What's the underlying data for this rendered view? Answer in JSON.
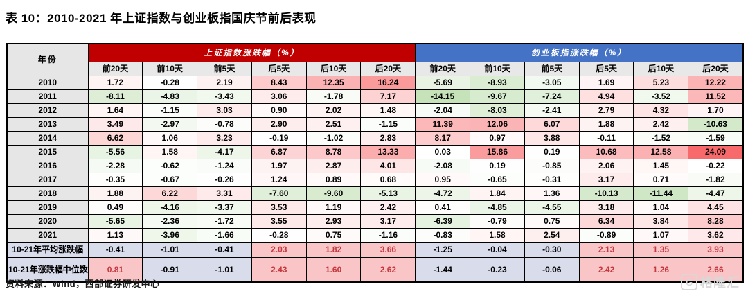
{
  "title": "表 10：2010-2021 年上证指数与创业板指国庆节前后表现",
  "source": "资料来源：Wind，西部证券研发中心",
  "watermark": {
    "icon_letter": "G",
    "text": "格隆汇"
  },
  "style": {
    "group1_bg": "#C00000",
    "group2_bg": "#4472C4",
    "group_header_text": "#FFFFFF",
    "subheader_bg": "#E8E8E8",
    "year_bg": "#E6E6E6",
    "pos_max_color": "#F8696B",
    "neg_max_color": "#84C169",
    "pos_scale_max": 24.09,
    "neg_scale_max": 30,
    "summary_neg_bg": "#D8DCEB",
    "summary_pos_bg": "#F9C5C7",
    "summary_pos_text": "#C5383E",
    "border_color": "#000000",
    "watermark_color": "#D8D8D8"
  },
  "chart_data": {
    "type": "table",
    "title": "表 10：2010-2021 年上证指数与创业板指国庆节前后表现",
    "row_header": "年份",
    "groups": [
      "上证指数涨跌幅（%）",
      "创业板指涨跌幅（%）"
    ],
    "sub_columns": [
      "前20天",
      "前10天",
      "前5天",
      "后5天",
      "后10天",
      "后20天"
    ],
    "rows": [
      {
        "label": "2010",
        "sh": [
          1.72,
          -0.28,
          2.19,
          8.43,
          12.35,
          16.24
        ],
        "cyb": [
          -5.69,
          -8.93,
          -3.05,
          1.69,
          5.23,
          12.22
        ]
      },
      {
        "label": "2011",
        "sh": [
          -8.11,
          -4.83,
          -3.43,
          3.06,
          -1.78,
          7.17
        ],
        "cyb": [
          -14.15,
          -9.67,
          -7.24,
          4.94,
          -3.52,
          11.52
        ]
      },
      {
        "label": "2012",
        "sh": [
          1.64,
          -1.15,
          3.03,
          0.9,
          2.02,
          1.48
        ],
        "cyb": [
          -2.04,
          -8.03,
          -2.41,
          2.79,
          4.32,
          1.7
        ]
      },
      {
        "label": "2013",
        "sh": [
          3.49,
          -2.97,
          -0.78,
          2.9,
          2.51,
          -1.15
        ],
        "cyb": [
          11.39,
          12.06,
          6.07,
          1.88,
          2.42,
          -10.63
        ]
      },
      {
        "label": "2014",
        "sh": [
          6.62,
          1.06,
          3.23,
          -0.19,
          -1.02,
          2.83
        ],
        "cyb": [
          8.17,
          0.97,
          3.88,
          -0.11,
          -1.52,
          -1.59
        ]
      },
      {
        "label": "2015",
        "sh": [
          -5.56,
          1.58,
          -4.17,
          6.87,
          8.78,
          13.33
        ],
        "cyb": [
          0.03,
          15.86,
          0.19,
          10.68,
          12.58,
          24.09
        ]
      },
      {
        "label": "2016",
        "sh": [
          -2.28,
          -0.62,
          -1.24,
          1.97,
          2.87,
          4.01
        ],
        "cyb": [
          -2.08,
          0.19,
          -0.85,
          2.06,
          1.45,
          -0.22
        ]
      },
      {
        "label": "2017",
        "sh": [
          -0.35,
          -0.67,
          -0.26,
          1.24,
          0.89,
          0.68
        ],
        "cyb": [
          0.95,
          -0.65,
          -0.31,
          3.17,
          0.71,
          -1.82
        ]
      },
      {
        "label": "2018",
        "sh": [
          1.88,
          6.22,
          3.31,
          -7.6,
          -9.6,
          -5.13
        ],
        "cyb": [
          -4.72,
          1.84,
          1.36,
          -10.13,
          -11.44,
          -4.47
        ]
      },
      {
        "label": "2019",
        "sh": [
          0.49,
          -4.16,
          -3.37,
          3.53,
          1.19,
          2.42
        ],
        "cyb": [
          0.41,
          -4.85,
          -4.55,
          3.18,
          1.04,
          4.45
        ]
      },
      {
        "label": "2020",
        "sh": [
          -5.65,
          -2.36,
          -1.72,
          3.55,
          2.93,
          3.17
        ],
        "cyb": [
          -6.39,
          -0.79,
          0.75,
          6.34,
          3.84,
          8.28
        ]
      },
      {
        "label": "2021",
        "sh": [
          1.13,
          -3.96,
          -1.66,
          -0.28,
          0.75,
          -1.16
        ],
        "cyb": [
          -0.83,
          1.58,
          2.54,
          -0.89,
          1.07,
          3.62
        ]
      }
    ],
    "summary_rows": [
      {
        "label": "10-21年平均涨跌幅",
        "sh": [
          -0.41,
          -1.01,
          -0.41,
          2.03,
          1.82,
          3.66
        ],
        "cyb": [
          -1.25,
          -0.04,
          -0.3,
          2.13,
          1.35,
          3.93
        ]
      },
      {
        "label": "10-21年涨跌幅中位数",
        "sh": [
          0.81,
          -0.91,
          -1.01,
          2.43,
          1.6,
          2.62
        ],
        "cyb": [
          -1.44,
          -0.23,
          -0.06,
          2.42,
          1.26,
          2.66
        ]
      }
    ],
    "source": "资料来源：Wind，西部证券研发中心"
  }
}
